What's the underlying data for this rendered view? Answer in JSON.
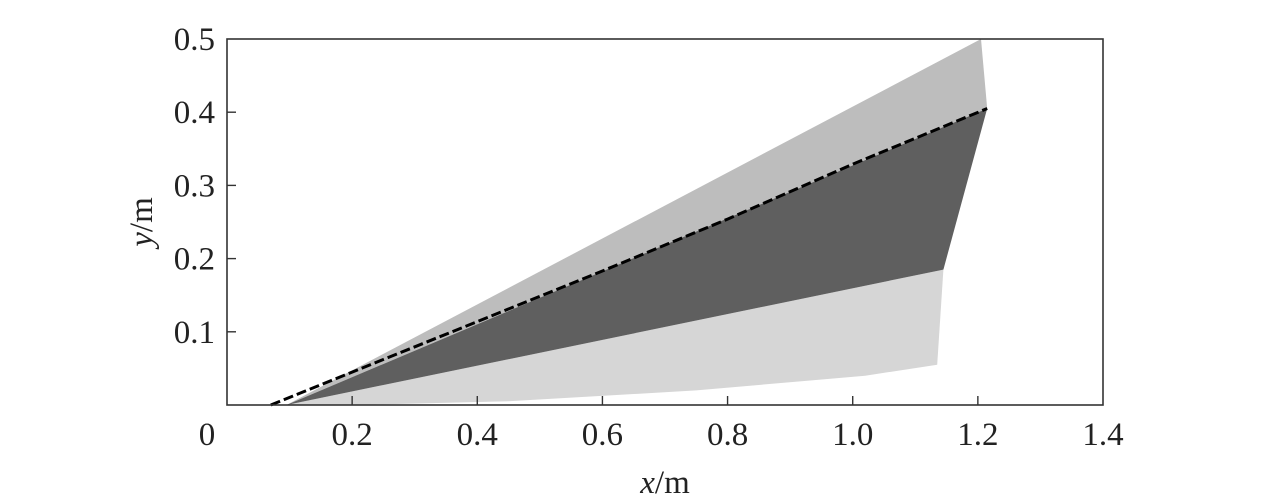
{
  "chart_data": {
    "type": "area",
    "xlabel": {
      "var": "x",
      "unit": "/m"
    },
    "ylabel": {
      "var": "y",
      "unit": "/m"
    },
    "xlim": [
      0,
      1.4
    ],
    "ylim": [
      0,
      0.5
    ],
    "xticks": [
      {
        "value": 0,
        "label": "0"
      },
      {
        "value": 0.2,
        "label": "0.2"
      },
      {
        "value": 0.4,
        "label": "0.4"
      },
      {
        "value": 0.6,
        "label": "0.6"
      },
      {
        "value": 0.8,
        "label": "0.8"
      },
      {
        "value": 1.0,
        "label": "1.0"
      },
      {
        "value": 1.2,
        "label": "1.2"
      },
      {
        "value": 1.4,
        "label": "1.4"
      }
    ],
    "yticks": [
      {
        "value": 0.1,
        "label": "0.1"
      },
      {
        "value": 0.2,
        "label": "0.2"
      },
      {
        "value": 0.3,
        "label": "0.3"
      },
      {
        "value": 0.4,
        "label": "0.4"
      },
      {
        "value": 0.5,
        "label": "0.5"
      }
    ],
    "grid": false,
    "regions": [
      {
        "shade": "light-upper",
        "color": "#bdbdbd",
        "points": [
          [
            0.095,
            0.0
          ],
          [
            1.205,
            0.5
          ],
          [
            1.215,
            0.405
          ]
        ]
      },
      {
        "shade": "light-lower",
        "color": "#d6d6d6",
        "points": [
          [
            0.095,
            0.0
          ],
          [
            1.145,
            0.185
          ],
          [
            1.135,
            0.055
          ],
          [
            1.02,
            0.04
          ],
          [
            0.75,
            0.02
          ],
          [
            0.45,
            0.005
          ],
          [
            0.2,
            0.0
          ]
        ]
      },
      {
        "shade": "dark-middle",
        "color": "#5f5f5f",
        "points": [
          [
            0.095,
            0.0
          ],
          [
            1.215,
            0.405
          ],
          [
            1.145,
            0.185
          ]
        ]
      }
    ],
    "series": [
      {
        "style": "dashed",
        "color": "#000000",
        "x": [
          0.07,
          0.2,
          0.4,
          0.6,
          0.8,
          1.0,
          1.215
        ],
        "y": [
          0.0,
          0.045,
          0.114,
          0.183,
          0.254,
          0.329,
          0.405
        ]
      }
    ]
  }
}
